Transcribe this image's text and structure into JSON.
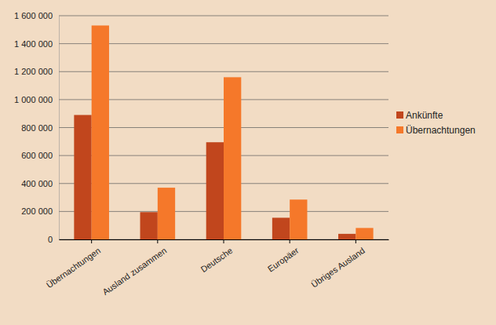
{
  "chart_data": {
    "type": "bar",
    "categories": [
      "Übernachtungen",
      "Ausland zusammen",
      "Deutsche",
      "Europäer",
      "Übriges Ausland"
    ],
    "series": [
      {
        "name": "Ankünfte",
        "color": "#c1461d",
        "values": [
          890000,
          195000,
          695000,
          155000,
          40000
        ]
      },
      {
        "name": "Übernachtungen",
        "color": "#f5782a",
        "values": [
          1530000,
          370000,
          1160000,
          285000,
          82000
        ]
      }
    ],
    "ylim": [
      0,
      1600000
    ],
    "yticks": [
      0,
      {
        "value": 200000,
        "label": "200 000"
      },
      {
        "value": 400000,
        "label": "400 000"
      },
      {
        "value": 600000,
        "label": "600 000"
      },
      {
        "value": 800000,
        "label": "800 000"
      },
      {
        "value": 1000000,
        "label": "1 000 000"
      },
      {
        "value": 1200000,
        "label": "1 200 000"
      },
      {
        "value": 1400000,
        "label": "1 400 000"
      },
      {
        "value": 1600000,
        "label": "1 600 000"
      }
    ],
    "grid": true,
    "legend": "right"
  }
}
